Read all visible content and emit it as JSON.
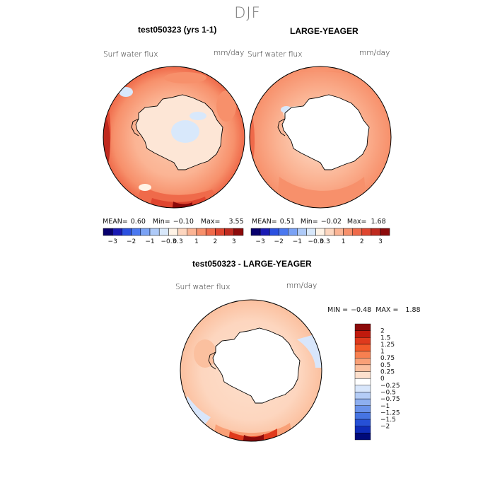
{
  "page": {
    "title": "DJF"
  },
  "panels": [
    {
      "title": "test050323 (yrs 1-1)",
      "variable": "Surf water flux",
      "units": "mm/day",
      "stats": {
        "mean_label": "MEAN=",
        "mean": "0.60",
        "min_label": "Min=",
        "min": "−0.10",
        "max_label": "Max=",
        "max": "3.55"
      }
    },
    {
      "title": "LARGE-YEAGER",
      "variable": "Surf water flux",
      "units": "mm/day",
      "stats": {
        "mean_label": "MEAN=",
        "mean": "0.51",
        "min_label": "Min=",
        "min": "−0.02",
        "max_label": "Max=",
        "max": "1.68"
      }
    },
    {
      "title": "test050323 - LARGE-YEAGER",
      "variable": "Surf water flux",
      "units": "mm/day",
      "stats": {
        "min_label": "MIN =",
        "min": "−0.48",
        "max_label": "MAX =",
        "max": "1.88"
      }
    }
  ],
  "colorbar_top": {
    "colors": [
      "#08006e",
      "#1a1ab4",
      "#2b50e0",
      "#4a78f0",
      "#7aa2f5",
      "#aecaf8",
      "#d8e8fb",
      "#fff3e6",
      "#fdd6bf",
      "#fbb494",
      "#f7906b",
      "#ef6a4a",
      "#df452f",
      "#bf2a1f",
      "#8c0a0a"
    ],
    "tick_labels": [
      "−3",
      "−2",
      "−1",
      "−0.3",
      "0.3",
      "1",
      "2",
      "3"
    ]
  },
  "colorbar_diff": {
    "colors": [
      "#8c0a0a",
      "#c01a0d",
      "#df3a1d",
      "#f25a2a",
      "#f78050",
      "#f9a077",
      "#fbc09f",
      "#fde0cd",
      "#ffffff",
      "#d8e6fb",
      "#b4ccf6",
      "#8eaff0",
      "#6a92ea",
      "#4674e2",
      "#2650d6",
      "#0f2cb8",
      "#000a7a"
    ],
    "tick_labels": [
      "2",
      "1.5",
      "1.25",
      "1",
      "0.75",
      "0.5",
      "0.25",
      "0",
      "−0.25",
      "−0.5",
      "−0.75",
      "−1",
      "−1.25",
      "−1.5",
      "−2"
    ]
  },
  "chart_data": [
    {
      "type": "heatmap",
      "projection": "south-polar-stereographic",
      "title": "test050323 (yrs 1-1)",
      "variable": "Surf water flux",
      "units": "mm/day",
      "mean": 0.6,
      "min": -0.1,
      "max": 3.55,
      "levels": [
        -3,
        -2,
        -1,
        -0.3,
        0.3,
        1,
        2,
        3
      ]
    },
    {
      "type": "heatmap",
      "projection": "south-polar-stereographic",
      "title": "LARGE-YEAGER",
      "variable": "Surf water flux",
      "units": "mm/day",
      "mean": 0.51,
      "min": -0.02,
      "max": 1.68,
      "levels": [
        -3,
        -2,
        -1,
        -0.3,
        0.3,
        1,
        2,
        3
      ]
    },
    {
      "type": "heatmap",
      "projection": "south-polar-stereographic",
      "title": "test050323 - LARGE-YEAGER",
      "variable": "Surf water flux",
      "units": "mm/day",
      "min": -0.48,
      "max": 1.88,
      "levels": [
        -2,
        -1.5,
        -1.25,
        -1,
        -0.75,
        -0.5,
        -0.25,
        0,
        0.25,
        0.5,
        0.75,
        1,
        1.25,
        1.5,
        2
      ]
    }
  ]
}
